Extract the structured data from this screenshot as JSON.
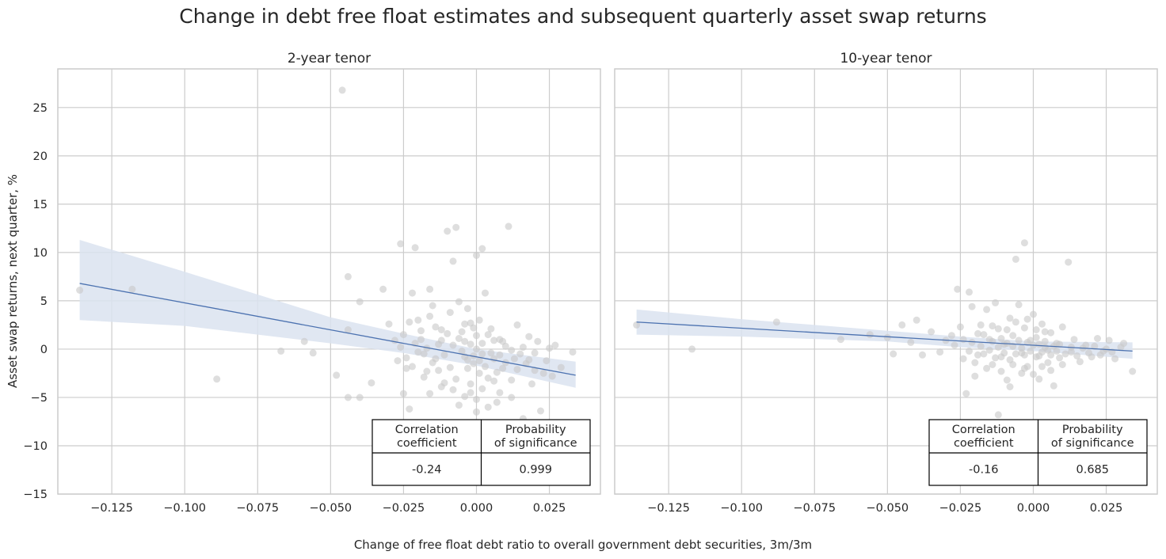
{
  "title": "Change in debt free float estimates and subsequent quarterly asset swap returns",
  "xlabel": "Change of free float debt ratio to overall government debt securities, 3m/3m",
  "ylabel": "Asset swap returns, next quarter, %",
  "colors": {
    "scatter": "#c8c8c8",
    "regression_line": "#4c72b0",
    "confidence_band": "#dbe3f0",
    "grid": "#cccccc",
    "text": "#262626"
  },
  "chart_data": [
    {
      "type": "scatter",
      "title": "2-year tenor",
      "xlim": [
        -0.1435,
        0.0425
      ],
      "ylim": [
        -15,
        29
      ],
      "xticks": [
        -0.125,
        -0.1,
        -0.075,
        -0.05,
        -0.025,
        0.0,
        0.025
      ],
      "xtick_labels": [
        "−0.125",
        "−0.100",
        "−0.075",
        "−0.050",
        "−0.025",
        "0.000",
        "0.025"
      ],
      "yticks": [
        -15,
        -10,
        -5,
        0,
        5,
        10,
        15,
        20,
        25
      ],
      "ytick_labels": [
        "−15",
        "−10",
        "−5",
        "0",
        "5",
        "10",
        "15",
        "20",
        "25"
      ],
      "grid": true,
      "regression": {
        "x0": -0.136,
        "y0": 6.8,
        "x1": 0.034,
        "y1": -2.7
      },
      "confidence_band": {
        "x": [
          -0.136,
          -0.1,
          -0.05,
          -0.025,
          0.0,
          0.034
        ],
        "upper": [
          11.3,
          8.0,
          3.3,
          1.6,
          0.0,
          -1.3
        ],
        "lower": [
          3.0,
          2.4,
          0.6,
          -0.4,
          -1.7,
          -4.0
        ]
      },
      "points": [
        [
          -0.136,
          6.1
        ],
        [
          -0.118,
          6.2
        ],
        [
          -0.089,
          -3.1
        ],
        [
          -0.067,
          -0.2
        ],
        [
          -0.059,
          0.8
        ],
        [
          -0.056,
          -0.4
        ],
        [
          -0.048,
          -2.7
        ],
        [
          -0.046,
          26.8
        ],
        [
          -0.044,
          7.5
        ],
        [
          -0.044,
          2.0
        ],
        [
          -0.044,
          -5.0
        ],
        [
          -0.04,
          4.9
        ],
        [
          -0.04,
          -5.0
        ],
        [
          -0.036,
          -3.5
        ],
        [
          -0.032,
          6.2
        ],
        [
          -0.03,
          2.6
        ],
        [
          -0.026,
          10.9
        ],
        [
          -0.025,
          -4.6
        ],
        [
          -0.024,
          -2.0
        ],
        [
          -0.023,
          -6.2
        ],
        [
          -0.022,
          5.8
        ],
        [
          -0.021,
          10.5
        ],
        [
          -0.02,
          3.0
        ],
        [
          -0.019,
          1.0
        ],
        [
          -0.018,
          -0.5
        ],
        [
          -0.017,
          -2.3
        ],
        [
          -0.016,
          6.2
        ],
        [
          -0.015,
          4.5
        ],
        [
          -0.014,
          -1.0
        ],
        [
          -0.013,
          0.5
        ],
        [
          -0.012,
          2.0
        ],
        [
          -0.011,
          -3.5
        ],
        [
          -0.01,
          12.2
        ],
        [
          -0.009,
          3.8
        ],
        [
          -0.008,
          9.1
        ],
        [
          -0.007,
          12.6
        ],
        [
          -0.006,
          4.9
        ],
        [
          -0.005,
          1.8
        ],
        [
          -0.004,
          -0.8
        ],
        [
          -0.004,
          2.6
        ],
        [
          -0.003,
          -2.0
        ],
        [
          -0.003,
          4.2
        ],
        [
          -0.002,
          0.5
        ],
        [
          -0.002,
          -4.5
        ],
        [
          -0.001,
          -1.5
        ],
        [
          -0.001,
          2.2
        ],
        [
          0.0,
          9.7
        ],
        [
          0.0,
          -6.5
        ],
        [
          0.0,
          0.0
        ],
        [
          0.001,
          -2.5
        ],
        [
          0.001,
          3.0
        ],
        [
          0.002,
          10.4
        ],
        [
          0.002,
          -0.5
        ],
        [
          0.003,
          5.8
        ],
        [
          0.004,
          -3.0
        ],
        [
          0.005,
          2.1
        ],
        [
          0.006,
          -1.0
        ],
        [
          0.007,
          -5.5
        ],
        [
          0.008,
          1.0
        ],
        [
          0.009,
          -2.0
        ],
        [
          0.01,
          0.3
        ],
        [
          0.011,
          12.7
        ],
        [
          0.012,
          -3.2
        ],
        [
          0.013,
          -1.0
        ],
        [
          0.014,
          2.5
        ],
        [
          0.015,
          -0.5
        ],
        [
          0.016,
          -7.2
        ],
        [
          0.017,
          -1.5
        ],
        [
          0.018,
          1.3
        ],
        [
          0.019,
          -3.6
        ],
        [
          0.02,
          -2.2
        ],
        [
          0.021,
          0.8
        ],
        [
          0.022,
          -6.4
        ],
        [
          0.024,
          -1.2
        ],
        [
          0.026,
          -2.8
        ],
        [
          0.027,
          0.4
        ],
        [
          0.029,
          -1.9
        ],
        [
          0.033,
          -0.3
        ],
        [
          -0.028,
          0.9
        ],
        [
          -0.027,
          -1.2
        ],
        [
          -0.026,
          0.2
        ],
        [
          -0.025,
          1.5
        ],
        [
          -0.024,
          -0.9
        ],
        [
          -0.023,
          2.8
        ],
        [
          -0.022,
          -1.8
        ],
        [
          -0.021,
          0.6
        ],
        [
          -0.02,
          -0.3
        ],
        [
          -0.019,
          1.9
        ],
        [
          -0.018,
          -2.9
        ],
        [
          -0.017,
          0.1
        ],
        [
          -0.016,
          3.4
        ],
        [
          -0.015,
          -1.4
        ],
        [
          -0.014,
          2.3
        ],
        [
          -0.013,
          -2.2
        ],
        [
          -0.012,
          0.9
        ],
        [
          -0.011,
          -0.6
        ],
        [
          -0.01,
          1.6
        ],
        [
          -0.009,
          -1.9
        ],
        [
          -0.008,
          0.4
        ],
        [
          -0.007,
          -3.1
        ],
        [
          -0.006,
          1.1
        ],
        [
          -0.005,
          -0.2
        ],
        [
          -0.004,
          0.8
        ],
        [
          -0.003,
          -1.1
        ],
        [
          -0.002,
          2.7
        ],
        [
          -0.001,
          -0.7
        ],
        [
          0.0,
          1.4
        ],
        [
          0.001,
          -1.2
        ],
        [
          0.002,
          0.6
        ],
        [
          0.003,
          -1.8
        ],
        [
          0.004,
          1.5
        ],
        [
          0.005,
          -0.4
        ],
        [
          0.006,
          0.9
        ],
        [
          0.007,
          -2.4
        ],
        [
          0.008,
          -0.6
        ],
        [
          0.009,
          0.8
        ],
        [
          0.01,
          -1.4
        ],
        [
          0.012,
          -0.1
        ],
        [
          0.014,
          -2.1
        ],
        [
          0.016,
          0.2
        ],
        [
          0.018,
          -1.1
        ],
        [
          0.02,
          -0.4
        ],
        [
          0.023,
          -2.5
        ],
        [
          0.025,
          0.1
        ],
        [
          -0.008,
          -4.2
        ],
        [
          -0.006,
          -5.8
        ],
        [
          -0.004,
          -4.9
        ],
        [
          -0.002,
          -3.6
        ],
        [
          0.0,
          -5.2
        ],
        [
          0.002,
          -4.1
        ],
        [
          0.004,
          -6.0
        ],
        [
          0.006,
          -3.3
        ],
        [
          0.008,
          -4.5
        ],
        [
          0.012,
          -5.0
        ],
        [
          -0.012,
          -3.9
        ],
        [
          -0.016,
          -4.6
        ]
      ],
      "table": {
        "headers": [
          "Correlation\ncoefficient",
          "Probability\nof significance"
        ],
        "values": [
          "-0.24",
          "0.999"
        ]
      }
    },
    {
      "type": "scatter",
      "title": "10-year tenor",
      "xlim": [
        -0.1435,
        0.0425
      ],
      "ylim": [
        -15,
        29
      ],
      "xticks": [
        -0.125,
        -0.1,
        -0.075,
        -0.05,
        -0.025,
        0.0,
        0.025
      ],
      "xtick_labels": [
        "−0.125",
        "−0.100",
        "−0.075",
        "−0.050",
        "−0.025",
        "0.000",
        "0.025"
      ],
      "grid": true,
      "regression": {
        "x0": -0.136,
        "y0": 2.8,
        "x1": 0.034,
        "y1": -0.2
      },
      "confidence_band": {
        "x": [
          -0.136,
          -0.1,
          -0.05,
          -0.025,
          0.0,
          0.034
        ],
        "upper": [
          4.1,
          3.1,
          1.9,
          1.3,
          0.8,
          0.7
        ],
        "lower": [
          1.5,
          1.3,
          0.8,
          0.2,
          -0.2,
          -1.0
        ]
      },
      "points": [
        [
          -0.136,
          2.5
        ],
        [
          -0.117,
          0.0
        ],
        [
          -0.088,
          2.8
        ],
        [
          -0.066,
          1.0
        ],
        [
          -0.056,
          1.5
        ],
        [
          -0.05,
          1.2
        ],
        [
          -0.048,
          -0.5
        ],
        [
          -0.045,
          2.5
        ],
        [
          -0.042,
          0.7
        ],
        [
          -0.04,
          3.0
        ],
        [
          -0.038,
          -0.6
        ],
        [
          -0.035,
          1.8
        ],
        [
          -0.032,
          -0.3
        ],
        [
          -0.03,
          0.9
        ],
        [
          -0.028,
          1.4
        ],
        [
          -0.026,
          6.2
        ],
        [
          -0.025,
          2.3
        ],
        [
          -0.024,
          -1.0
        ],
        [
          -0.023,
          -4.6
        ],
        [
          -0.022,
          5.9
        ],
        [
          -0.021,
          4.4
        ],
        [
          -0.02,
          -2.8
        ],
        [
          -0.019,
          1.6
        ],
        [
          -0.018,
          2.5
        ],
        [
          -0.017,
          -0.5
        ],
        [
          -0.016,
          4.1
        ],
        [
          -0.015,
          1.0
        ],
        [
          -0.014,
          -1.6
        ],
        [
          -0.013,
          4.8
        ],
        [
          -0.012,
          2.1
        ],
        [
          -0.011,
          -0.8
        ],
        [
          -0.01,
          0.5
        ],
        [
          -0.009,
          -3.2
        ],
        [
          -0.008,
          3.2
        ],
        [
          -0.007,
          1.4
        ],
        [
          -0.006,
          9.3
        ],
        [
          -0.005,
          4.6
        ],
        [
          -0.004,
          -0.4
        ],
        [
          -0.003,
          11.0
        ],
        [
          -0.003,
          2.2
        ],
        [
          -0.002,
          -1.8
        ],
        [
          -0.001,
          0.9
        ],
        [
          0.0,
          3.6
        ],
        [
          0.0,
          -2.6
        ],
        [
          0.001,
          1.2
        ],
        [
          0.002,
          -0.7
        ],
        [
          0.003,
          2.6
        ],
        [
          0.004,
          0.2
        ],
        [
          0.005,
          -1.4
        ],
        [
          0.006,
          1.7
        ],
        [
          0.007,
          -3.8
        ],
        [
          0.008,
          0.6
        ],
        [
          0.009,
          -0.9
        ],
        [
          0.01,
          2.3
        ],
        [
          0.012,
          9.0
        ],
        [
          0.013,
          -0.3
        ],
        [
          0.014,
          1.0
        ],
        [
          0.016,
          -1.3
        ],
        [
          0.018,
          0.4
        ],
        [
          0.02,
          -0.8
        ],
        [
          0.022,
          1.1
        ],
        [
          0.024,
          -0.2
        ],
        [
          0.026,
          0.9
        ],
        [
          0.028,
          -1.0
        ],
        [
          0.031,
          0.6
        ],
        [
          0.034,
          -2.3
        ],
        [
          -0.012,
          -6.8
        ],
        [
          -0.008,
          -3.9
        ],
        [
          -0.004,
          -2.5
        ],
        [
          0.002,
          -3.1
        ],
        [
          -0.016,
          -2.0
        ],
        [
          -0.02,
          -1.4
        ],
        [
          -0.027,
          0.4
        ],
        [
          -0.024,
          1.0
        ],
        [
          -0.022,
          -0.2
        ],
        [
          -0.021,
          0.7
        ],
        [
          -0.019,
          -0.6
        ],
        [
          -0.018,
          0.3
        ],
        [
          -0.017,
          1.5
        ],
        [
          -0.015,
          -0.1
        ],
        [
          -0.014,
          0.8
        ],
        [
          -0.013,
          -0.9
        ],
        [
          -0.012,
          0.2
        ],
        [
          -0.011,
          1.1
        ],
        [
          -0.01,
          -0.4
        ],
        [
          -0.009,
          0.6
        ],
        [
          -0.008,
          -1.1
        ],
        [
          -0.007,
          0.3
        ],
        [
          -0.006,
          -0.5
        ],
        [
          -0.005,
          0.9
        ],
        [
          -0.004,
          0.1
        ],
        [
          -0.003,
          -0.6
        ],
        [
          -0.002,
          0.7
        ],
        [
          -0.001,
          -0.2
        ],
        [
          0.0,
          0.4
        ],
        [
          0.001,
          -0.8
        ],
        [
          0.002,
          0.5
        ],
        [
          0.003,
          -0.3
        ],
        [
          0.004,
          0.8
        ],
        [
          0.005,
          -0.1
        ],
        [
          0.006,
          -0.6
        ],
        [
          0.007,
          0.3
        ],
        [
          0.008,
          -0.2
        ],
        [
          0.009,
          0.5
        ],
        [
          0.011,
          -0.5
        ],
        [
          0.013,
          0.2
        ],
        [
          0.015,
          -0.7
        ],
        [
          0.017,
          0.1
        ],
        [
          0.019,
          -0.4
        ],
        [
          0.021,
          0.3
        ],
        [
          0.023,
          -0.6
        ],
        [
          0.025,
          0.0
        ],
        [
          0.027,
          -0.3
        ],
        [
          0.03,
          0.2
        ],
        [
          -0.006,
          2.8
        ],
        [
          -0.002,
          3.1
        ],
        [
          0.001,
          2.0
        ],
        [
          0.004,
          1.8
        ],
        [
          -0.009,
          2.0
        ],
        [
          -0.014,
          2.4
        ],
        [
          -0.003,
          -2.0
        ],
        [
          0.003,
          -1.8
        ],
        [
          -0.007,
          -1.6
        ],
        [
          0.006,
          -2.2
        ],
        [
          0.01,
          -1.6
        ],
        [
          -0.011,
          -2.3
        ]
      ],
      "table": {
        "headers": [
          "Correlation\ncoefficient",
          "Probability\nof significance"
        ],
        "values": [
          "-0.16",
          "0.685"
        ]
      }
    }
  ]
}
